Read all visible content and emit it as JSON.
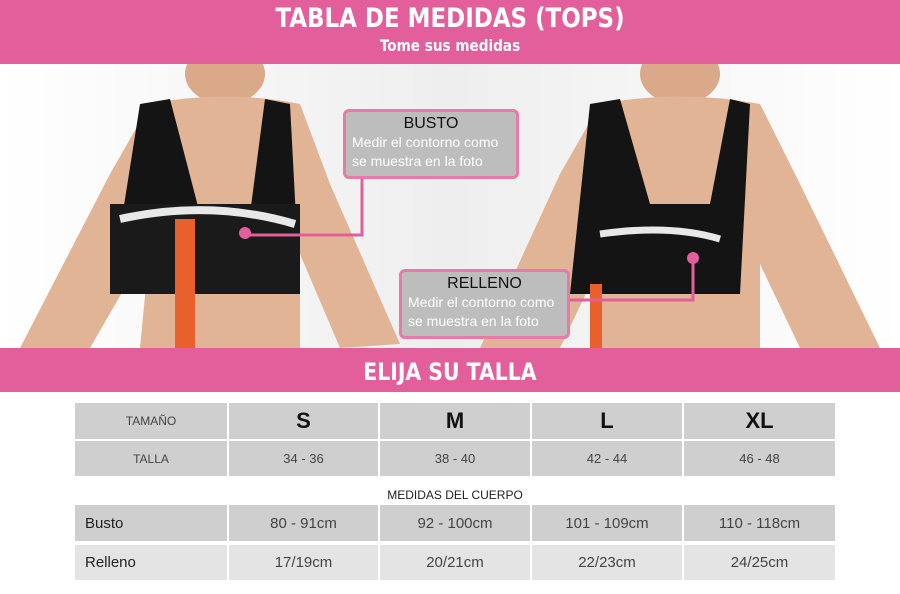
{
  "header": {
    "title": "TABLA DE MEDIDAS (TOPS)",
    "subtitle": "Tome sus medidas"
  },
  "callouts": {
    "busto": {
      "title": "BUSTO",
      "line1": "Medir el contorno como",
      "line2": "se muestra en la foto"
    },
    "relleno": {
      "title": "RELLENO",
      "line1": "Medir el contorno como",
      "line2": "se muestra en la foto"
    }
  },
  "band": {
    "title": "ELIJA SU TALLA"
  },
  "table": {
    "size_label": "TAMAÑO",
    "sizes": [
      "S",
      "M",
      "L",
      "XL"
    ],
    "talla_label": "TALLA",
    "tallas": [
      "34 - 36",
      "38 - 40",
      "42 - 44",
      "46 - 48"
    ],
    "section_label": "MEDIDAS DEL CUERPO",
    "busto_label": "Busto",
    "busto": [
      "80 - 91cm",
      "92 - 100cm",
      "101 - 109cm",
      "110 - 118cm"
    ],
    "relleno_label": "Relleno",
    "relleno": [
      "17/19cm",
      "20/21cm",
      "22/23cm",
      "24/25cm"
    ]
  },
  "colors": {
    "accent": "#e25f9c",
    "cell_dark": "#cfcfcf",
    "cell_light": "#e4e4e4"
  }
}
